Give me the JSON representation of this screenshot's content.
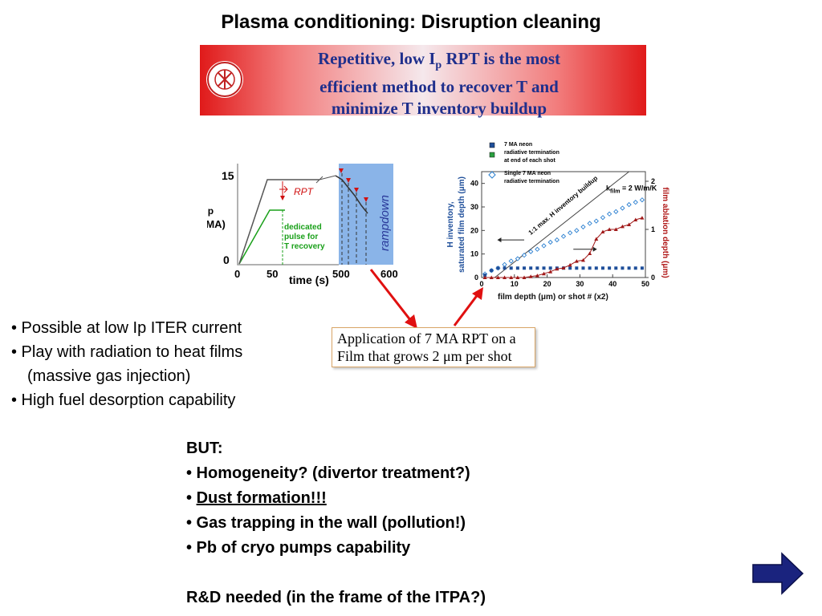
{
  "slide": {
    "title": "Plasma conditioning: Disruption cleaning",
    "banner": {
      "line1_pre": "Repetitive, low I",
      "line1_sub": "p",
      "line1_post": " RPT is the most",
      "line2": "efficient method to recover T and",
      "line3": "minimize T inventory buildup",
      "colors": {
        "edge": "#e01a1a",
        "center": "#f5e8ec",
        "text": "#1f2f8c"
      }
    },
    "bullets": [
      "• Possible at low Ip ITER current",
      "• Play with radiation to heat films",
      "(massive gas injection)",
      "• High fuel desorption capability"
    ],
    "callout": {
      "line1": "Application of 7 MA RPT on a",
      "line2": "Film that grows 2 μm per shot"
    },
    "but": {
      "heading": "BUT:",
      "items": [
        "• Homogeneity? (divertor treatment?)",
        "Dust formation!!!",
        "• Gas trapping in the wall (pollution!)",
        "• Pb of cryo pumps capability"
      ],
      "bullet2_prefix": "• ",
      "closing": "R&D needed (in the frame of the ITPA?)"
    },
    "nav": {
      "next_icon": "arrow-right-icon",
      "color": "#1a237e"
    }
  },
  "left_figure": {
    "y_label": "I",
    "y_label_sub": "p",
    "y_unit": "(MA)",
    "y_ticks": [
      "15",
      "0"
    ],
    "x_ticks": [
      "0",
      "50",
      "500",
      "600"
    ],
    "x_label": "time (s)",
    "rpt_label": "RPT",
    "pulse_label": [
      "dedicated",
      "pulse for",
      "T recovery"
    ],
    "ramp_label": "rampdown",
    "colors": {
      "ramp": "#8ab4e8",
      "pulse": "#1aa01a",
      "rpt": "#d01010"
    }
  },
  "chart_data": {
    "type": "scatter",
    "xlabel": "film depth (μm)  or   shot # (x2)",
    "ylabel_left": [
      "H inventory,",
      "saturated film depth (μm)"
    ],
    "ylabel_right": "film ablation depth (μm)",
    "x_ticks": [
      "0",
      "10",
      "20",
      "30",
      "40",
      "50"
    ],
    "y_left_ticks": [
      "0",
      "10",
      "20",
      "30",
      "40"
    ],
    "y_right_ticks": [
      "0",
      "1",
      "2"
    ],
    "xlim": [
      0,
      50
    ],
    "ylim_left": [
      0,
      45
    ],
    "ylim_right": [
      0,
      2.2
    ],
    "annotations": [
      "1:1 max. H inventory buildup",
      "k",
      "film",
      " = 2 W/m/K"
    ],
    "legend": [
      {
        "label": [
          "7 MA neon",
          "radiative termination",
          "at end of each shot"
        ],
        "color": "#1f4f9a"
      },
      {
        "label": [
          "Single 7 MA neon",
          "radiative termination"
        ],
        "color": "#2a7fd0"
      }
    ],
    "series": [
      {
        "name": "Single 7 MA neon radiative termination",
        "marker": "diamond",
        "color": "#2a7fd0",
        "x": [
          1,
          3,
          5,
          7,
          9,
          11,
          13,
          15,
          17,
          19,
          21,
          23,
          25,
          27,
          29,
          31,
          33,
          35,
          37,
          39,
          41,
          43,
          45,
          47,
          49
        ],
        "y": [
          1.5,
          3,
          4,
          5.5,
          7,
          8,
          9.5,
          11,
          12,
          13.5,
          15,
          16,
          17.5,
          19,
          20,
          21.5,
          23,
          24,
          25.5,
          27,
          28,
          29.5,
          31,
          32,
          33
        ]
      },
      {
        "name": "7 MA neon radiative termination at end of each shot",
        "marker": "square",
        "color": "#1f4f9a",
        "x": [
          1,
          3,
          5,
          7,
          9,
          11,
          13,
          15,
          17,
          19,
          21,
          23,
          25,
          27,
          29,
          31,
          33,
          35,
          37,
          39,
          41,
          43,
          45,
          47,
          49
        ],
        "y": [
          1,
          3,
          4,
          4,
          4,
          4,
          4,
          4,
          4,
          4,
          4,
          4,
          4,
          4,
          4,
          4,
          4,
          4,
          4,
          4,
          4,
          4,
          4,
          4,
          4
        ]
      },
      {
        "name": "film ablation depth",
        "marker": "triangle",
        "color": "#a01818",
        "axis": "right",
        "x": [
          1,
          3,
          5,
          7,
          9,
          11,
          13,
          15,
          17,
          19,
          21,
          23,
          25,
          27,
          29,
          31,
          33,
          35,
          37,
          39,
          41,
          43,
          45,
          47,
          49
        ],
        "y": [
          0,
          0,
          0,
          0,
          0,
          0,
          0,
          0.02,
          0.04,
          0.08,
          0.12,
          0.18,
          0.2,
          0.26,
          0.34,
          0.36,
          0.5,
          0.8,
          0.95,
          1.0,
          1.0,
          1.06,
          1.1,
          1.2,
          1.24
        ]
      }
    ]
  }
}
